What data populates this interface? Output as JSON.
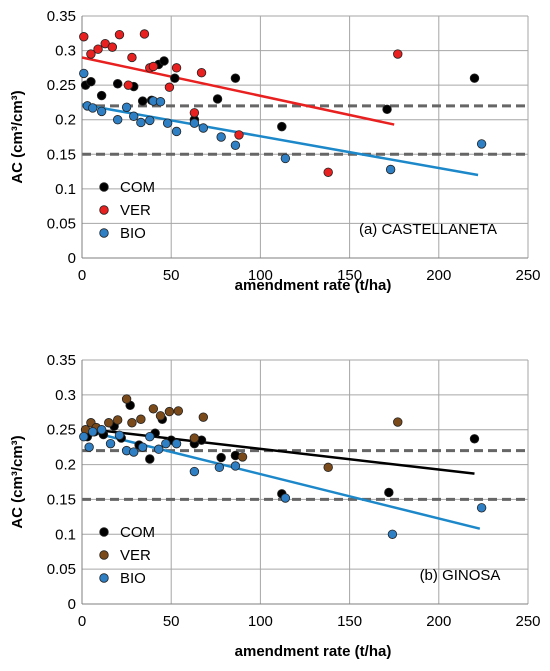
{
  "colors": {
    "com": "#000000",
    "ver_top": "#e8201f",
    "ver_bottom": "#7a4a1a",
    "bio": "#2f7fc4",
    "trend_com_bottom": "#000000",
    "trend_ver_top": "#e8201f",
    "trend_bio": "#1c88c9",
    "reference_line": "#666666",
    "grid": "#a6a6a6"
  },
  "chart_data": [
    {
      "type": "scatter",
      "panel_label": "(a) CASTELLANETA",
      "xlabel": "amendment rate (t/ha)",
      "ylabel": "AC (cm³/cm³)",
      "xlim": [
        0,
        250
      ],
      "ylim": [
        0,
        0.35
      ],
      "x_ticks": [
        "0",
        "50",
        "100",
        "150",
        "200",
        "250"
      ],
      "y_ticks": [
        "0",
        "0.05",
        "0.1",
        "0.15",
        "0.2",
        "0.25",
        "0.3",
        "0.35"
      ],
      "grid": true,
      "legend_position": "left-bottom",
      "reference_lines": [
        0.22,
        0.15
      ],
      "series": [
        {
          "name": "COM",
          "key": "com",
          "points": [
            [
              2,
              0.25
            ],
            [
              5,
              0.255
            ],
            [
              11,
              0.235
            ],
            [
              20,
              0.252
            ],
            [
              29,
              0.248
            ],
            [
              34,
              0.227
            ],
            [
              39,
              0.228
            ],
            [
              43,
              0.28
            ],
            [
              46,
              0.285
            ],
            [
              52,
              0.26
            ],
            [
              63,
              0.2
            ],
            [
              76,
              0.23
            ],
            [
              86,
              0.26
            ],
            [
              112,
              0.19
            ],
            [
              171,
              0.215
            ],
            [
              220,
              0.26
            ]
          ]
        },
        {
          "name": "VER",
          "key": "ver_top",
          "points": [
            [
              1,
              0.32
            ],
            [
              5,
              0.295
            ],
            [
              9,
              0.302
            ],
            [
              13,
              0.31
            ],
            [
              17,
              0.305
            ],
            [
              21,
              0.323
            ],
            [
              26,
              0.25
            ],
            [
              28,
              0.29
            ],
            [
              35,
              0.324
            ],
            [
              38,
              0.275
            ],
            [
              40,
              0.277
            ],
            [
              49,
              0.247
            ],
            [
              53,
              0.275
            ],
            [
              63,
              0.21
            ],
            [
              67,
              0.268
            ],
            [
              88,
              0.178
            ],
            [
              138,
              0.124
            ],
            [
              177,
              0.295
            ]
          ]
        },
        {
          "name": "BIO",
          "key": "bio",
          "points": [
            [
              1,
              0.267
            ],
            [
              3,
              0.22
            ],
            [
              6,
              0.217
            ],
            [
              11,
              0.212
            ],
            [
              20,
              0.2
            ],
            [
              25,
              0.218
            ],
            [
              29,
              0.205
            ],
            [
              33,
              0.196
            ],
            [
              38,
              0.199
            ],
            [
              40,
              0.227
            ],
            [
              44,
              0.226
            ],
            [
              48,
              0.195
            ],
            [
              53,
              0.183
            ],
            [
              63,
              0.195
            ],
            [
              68,
              0.188
            ],
            [
              78,
              0.175
            ],
            [
              86,
              0.163
            ],
            [
              114,
              0.144
            ],
            [
              173,
              0.128
            ],
            [
              224,
              0.165
            ]
          ]
        }
      ],
      "trend_lines": [
        {
          "key": "trend_ver_top",
          "from": [
            0,
            0.29
          ],
          "to": [
            175,
            0.193
          ]
        },
        {
          "key": "trend_bio",
          "from": [
            0,
            0.222
          ],
          "to": [
            222,
            0.12
          ]
        }
      ]
    },
    {
      "type": "scatter",
      "panel_label": "(b) GINOSA",
      "xlabel": "amendment rate (t/ha)",
      "ylabel": "AC (cm³/cm³)",
      "xlim": [
        0,
        250
      ],
      "ylim": [
        0,
        0.35
      ],
      "x_ticks": [
        "0",
        "50",
        "100",
        "150",
        "200",
        "250"
      ],
      "y_ticks": [
        "0",
        "0.05",
        "0.1",
        "0.15",
        "0.2",
        "0.25",
        "0.3",
        "0.35"
      ],
      "grid": true,
      "legend_position": "left-bottom",
      "reference_lines": [
        0.22,
        0.15
      ],
      "series": [
        {
          "name": "COM",
          "key": "com",
          "points": [
            [
              3,
              0.24
            ],
            [
              7,
              0.247
            ],
            [
              12,
              0.243
            ],
            [
              18,
              0.255
            ],
            [
              22,
              0.238
            ],
            [
              27,
              0.285
            ],
            [
              32,
              0.228
            ],
            [
              38,
              0.208
            ],
            [
              41,
              0.245
            ],
            [
              45,
              0.265
            ],
            [
              50,
              0.235
            ],
            [
              63,
              0.23
            ],
            [
              67,
              0.235
            ],
            [
              78,
              0.21
            ],
            [
              86,
              0.213
            ],
            [
              112,
              0.158
            ],
            [
              172,
              0.16
            ],
            [
              220,
              0.237
            ]
          ]
        },
        {
          "name": "VER",
          "key": "ver_bottom",
          "points": [
            [
              2,
              0.25
            ],
            [
              5,
              0.26
            ],
            [
              8,
              0.253
            ],
            [
              15,
              0.26
            ],
            [
              20,
              0.264
            ],
            [
              25,
              0.294
            ],
            [
              28,
              0.26
            ],
            [
              33,
              0.265
            ],
            [
              40,
              0.28
            ],
            [
              44,
              0.27
            ],
            [
              49,
              0.276
            ],
            [
              54,
              0.277
            ],
            [
              63,
              0.238
            ],
            [
              68,
              0.268
            ],
            [
              90,
              0.211
            ],
            [
              138,
              0.196
            ],
            [
              177,
              0.261
            ]
          ]
        },
        {
          "name": "BIO",
          "key": "bio",
          "points": [
            [
              1,
              0.24
            ],
            [
              4,
              0.225
            ],
            [
              6,
              0.247
            ],
            [
              11,
              0.25
            ],
            [
              16,
              0.23
            ],
            [
              21,
              0.242
            ],
            [
              25,
              0.22
            ],
            [
              29,
              0.218
            ],
            [
              34,
              0.225
            ],
            [
              38,
              0.24
            ],
            [
              43,
              0.222
            ],
            [
              47,
              0.23
            ],
            [
              53,
              0.23
            ],
            [
              63,
              0.19
            ],
            [
              77,
              0.196
            ],
            [
              86,
              0.198
            ],
            [
              114,
              0.152
            ],
            [
              174,
              0.1
            ],
            [
              224,
              0.138
            ]
          ]
        }
      ],
      "trend_lines": [
        {
          "key": "trend_com_bottom",
          "from": [
            0,
            0.252
          ],
          "to": [
            220,
            0.187
          ]
        },
        {
          "key": "trend_bio",
          "from": [
            0,
            0.25
          ],
          "to": [
            223,
            0.108
          ]
        }
      ]
    }
  ]
}
